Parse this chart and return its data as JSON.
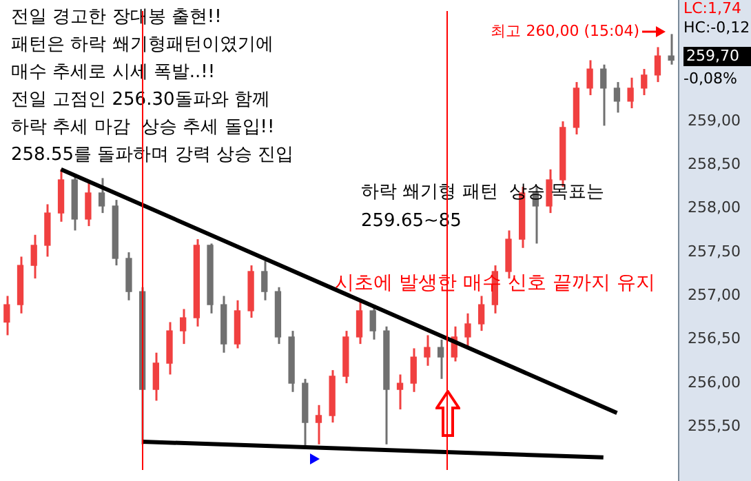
{
  "chart_data": {
    "type": "candlestick",
    "categories": [
      null,
      null,
      null,
      null,
      null,
      null,
      null,
      null,
      null,
      null,
      null,
      null,
      null,
      null,
      null,
      null,
      null,
      null,
      null,
      null,
      null,
      null,
      null,
      null,
      null,
      null,
      null,
      null,
      null,
      null,
      null,
      null,
      null,
      null,
      null,
      null,
      null,
      null,
      null,
      null,
      null,
      null,
      null,
      null,
      null,
      null,
      null,
      null,
      null,
      null
    ],
    "ohlc": [
      [
        256.7,
        257.0,
        256.55,
        256.9
      ],
      [
        256.9,
        257.45,
        256.8,
        257.35
      ],
      [
        257.35,
        257.7,
        257.2,
        257.58
      ],
      [
        257.58,
        258.05,
        257.45,
        257.95
      ],
      [
        257.95,
        258.45,
        257.85,
        258.33
      ],
      [
        258.33,
        258.4,
        257.75,
        257.88
      ],
      [
        257.88,
        258.3,
        257.8,
        258.18
      ],
      [
        258.18,
        258.35,
        257.95,
        258.03
      ],
      [
        258.03,
        258.1,
        257.35,
        257.43
      ],
      [
        257.43,
        257.5,
        256.95,
        257.05
      ],
      [
        257.05,
        257.1,
        255.3,
        255.93
      ],
      [
        255.93,
        256.35,
        255.8,
        256.23
      ],
      [
        256.23,
        256.7,
        256.1,
        256.6
      ],
      [
        256.6,
        256.85,
        256.45,
        256.75
      ],
      [
        256.75,
        257.65,
        256.65,
        257.58
      ],
      [
        257.58,
        257.6,
        256.8,
        256.9
      ],
      [
        256.9,
        257.0,
        256.35,
        256.45
      ],
      [
        256.45,
        256.95,
        256.4,
        256.83
      ],
      [
        256.83,
        257.35,
        256.75,
        257.28
      ],
      [
        257.28,
        257.4,
        256.95,
        257.05
      ],
      [
        257.05,
        257.1,
        256.45,
        256.53
      ],
      [
        256.53,
        256.6,
        255.9,
        256.0
      ],
      [
        256.0,
        256.05,
        255.25,
        255.55
      ],
      [
        255.55,
        255.75,
        255.3,
        255.63
      ],
      [
        255.63,
        256.15,
        255.55,
        256.08
      ],
      [
        256.08,
        256.6,
        256.0,
        256.53
      ],
      [
        256.53,
        256.95,
        256.45,
        256.83
      ],
      [
        256.83,
        256.9,
        256.5,
        256.6
      ],
      [
        256.6,
        256.65,
        255.3,
        255.93
      ],
      [
        255.93,
        256.1,
        255.7,
        256.0
      ],
      [
        256.0,
        256.4,
        255.9,
        256.3
      ],
      [
        256.3,
        256.55,
        256.2,
        256.41
      ],
      [
        256.41,
        256.5,
        256.05,
        256.3
      ],
      [
        256.3,
        256.65,
        256.25,
        256.53
      ],
      [
        256.53,
        256.8,
        256.4,
        256.68
      ],
      [
        256.68,
        257.0,
        256.6,
        256.9
      ],
      [
        256.9,
        257.35,
        256.8,
        257.28
      ],
      [
        257.28,
        257.75,
        257.2,
        257.65
      ],
      [
        257.65,
        258.25,
        257.55,
        258.18
      ],
      [
        258.18,
        258.25,
        257.6,
        258.03
      ],
      [
        258.03,
        258.45,
        257.95,
        258.33
      ],
      [
        258.33,
        259.0,
        258.25,
        258.93
      ],
      [
        258.93,
        259.45,
        258.85,
        259.38
      ],
      [
        259.38,
        259.7,
        259.3,
        259.6
      ],
      [
        259.6,
        259.65,
        258.95,
        259.38
      ],
      [
        259.38,
        259.45,
        259.1,
        259.23
      ],
      [
        259.23,
        259.5,
        259.15,
        259.38
      ],
      [
        259.38,
        259.6,
        259.3,
        259.53
      ],
      [
        259.53,
        259.85,
        259.45,
        259.75
      ],
      [
        259.75,
        260.0,
        259.65,
        259.7
      ]
    ],
    "colors": [
      "#f04040",
      "#f04040",
      "#f04040",
      "#f04040",
      "#f04040",
      "#707070",
      "#f04040",
      "#707070",
      "#707070",
      "#707070",
      "#707070",
      "#f04040",
      "#f04040",
      "#f04040",
      "#f04040",
      "#707070",
      "#707070",
      "#f04040",
      "#f04040",
      "#707070",
      "#707070",
      "#707070",
      "#707070",
      "#f04040",
      "#f04040",
      "#f04040",
      "#f04040",
      "#707070",
      "#707070",
      "#f04040",
      "#f04040",
      "#f04040",
      "#707070",
      "#f04040",
      "#f04040",
      "#f04040",
      "#f04040",
      "#f04040",
      "#f04040",
      "#707070",
      "#f04040",
      "#f04040",
      "#f04040",
      "#f04040",
      "#707070",
      "#707070",
      "#f04040",
      "#f04040",
      "#f04040",
      "#707070"
    ],
    "series": [
      {
        "type": "line",
        "color": "#000000",
        "values": [
          null,
          null,
          null,
          null,
          258.45,
          null,
          null,
          null,
          null,
          null,
          null,
          null,
          null,
          null,
          null,
          null,
          null,
          null,
          null,
          null,
          null,
          null,
          null,
          null,
          null,
          null,
          null,
          null,
          null,
          null,
          null,
          null,
          null,
          null,
          null,
          null,
          null,
          null,
          null,
          null,
          null,
          null,
          null,
          null,
          null,
          255.66,
          null,
          null,
          null,
          null
        ]
      },
      {
        "type": "line",
        "color": "#000000",
        "values": [
          null,
          null,
          null,
          null,
          null,
          null,
          null,
          null,
          null,
          null,
          255.33,
          null,
          null,
          null,
          null,
          null,
          null,
          null,
          null,
          null,
          null,
          null,
          null,
          null,
          null,
          null,
          null,
          null,
          null,
          null,
          null,
          null,
          null,
          null,
          null,
          null,
          null,
          null,
          null,
          null,
          null,
          null,
          null,
          null,
          255.15,
          null,
          null,
          null,
          null,
          null
        ]
      }
    ],
    "ylim": [
      255.0,
      260.27
    ],
    "yticks": [
      {
        "value": 255.5,
        "label": "255,50"
      },
      {
        "value": 256.0,
        "label": "256,00"
      },
      {
        "value": 256.5,
        "label": "256,50"
      },
      {
        "value": 257.0,
        "label": "257,00"
      },
      {
        "value": 257.5,
        "label": "257,50"
      },
      {
        "value": 258.0,
        "label": "258,00"
      },
      {
        "value": 258.5,
        "label": "258,50"
      },
      {
        "value": 259.0,
        "label": "259,00"
      }
    ],
    "tick_labels": "y",
    "annotations": [
      "전일 경고한 장대봉 출현!!\n패턴은 하락 쐐기형패턴이였기에\n매수 추세로 시세 폭발..!!\n전일 고점인 256.30돌파와 함께\n하락 추세 마감  상승 추세 돌입!!\n258.55를 돌파하며 강력 상승 진입",
      "최고 260,00 (15:04)",
      "하락 쐐기형 패턴  상승 목표는\n259.65~85",
      "시초에 발생한 매수 신호 끝까지 유지",
      "LC:1,74",
      "HC:-0,12",
      "-0,08%",
      "259,70"
    ]
  }
}
